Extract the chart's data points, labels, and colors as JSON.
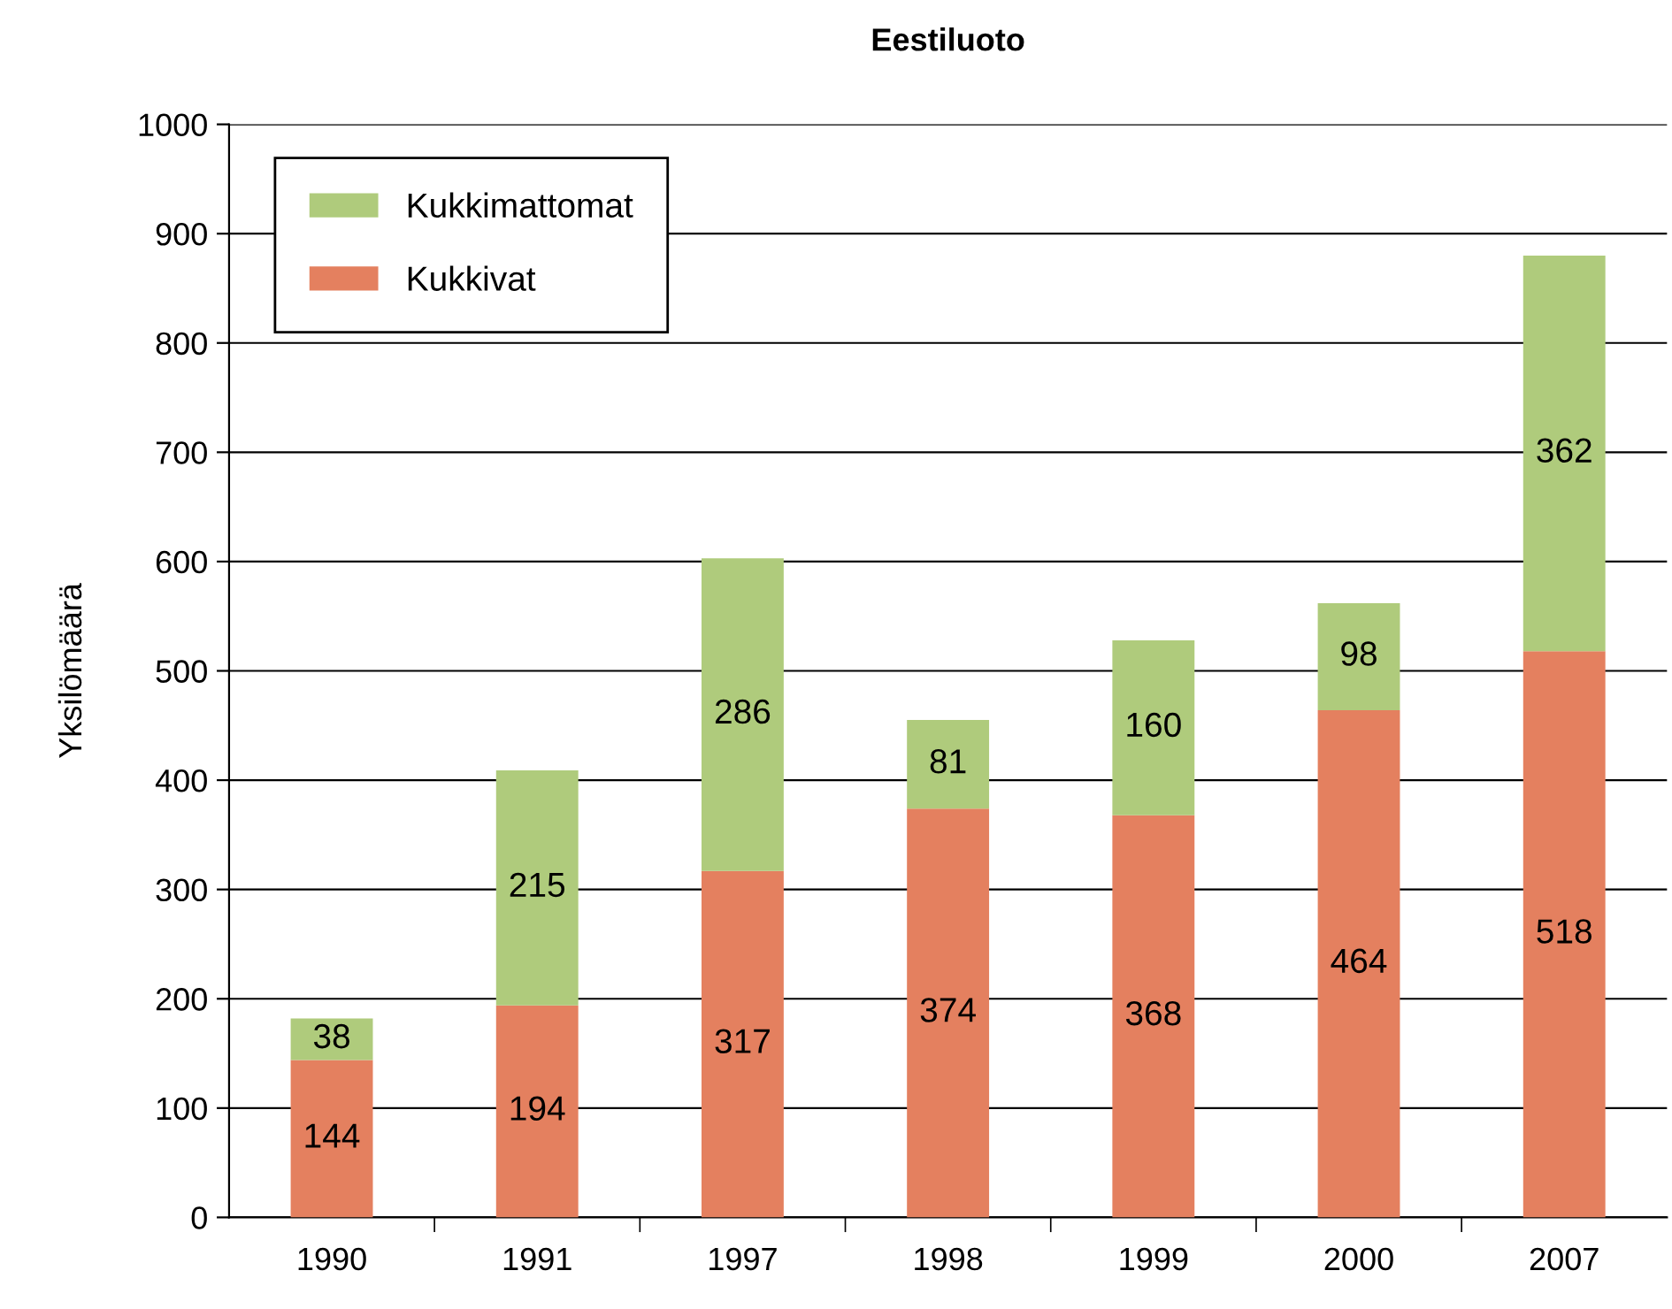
{
  "chart_data": {
    "type": "bar",
    "title": "Eestiluoto",
    "ylabel": "Yksilömäärä",
    "categories": [
      "1990",
      "1991",
      "1997",
      "1998",
      "1999",
      "2000",
      "2007"
    ],
    "stacked": true,
    "data_labels": true,
    "grid": "y",
    "legend": "top left",
    "series": [
      {
        "name": "Kukkivat",
        "color": "#e4805f",
        "values": [
          144,
          194,
          317,
          374,
          368,
          464,
          518
        ]
      },
      {
        "name": "Kukkimattomat",
        "color": "#afcb7c",
        "values": [
          38,
          215,
          286,
          81,
          160,
          98,
          362
        ]
      }
    ],
    "ylim": [
      0,
      1000
    ],
    "yticks": [
      0,
      100,
      200,
      300,
      400,
      500,
      600,
      700,
      800,
      900,
      1000
    ]
  }
}
